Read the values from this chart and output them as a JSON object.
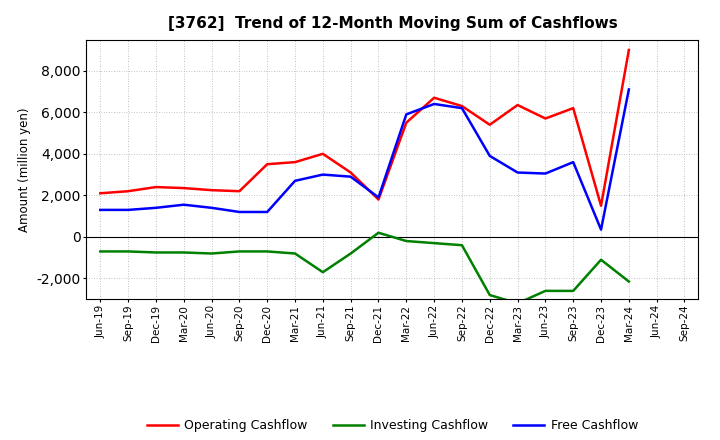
{
  "title": "[3762]  Trend of 12-Month Moving Sum of Cashflows",
  "ylabel": "Amount (million yen)",
  "x_labels": [
    "Jun-19",
    "Sep-19",
    "Dec-19",
    "Mar-20",
    "Jun-20",
    "Sep-20",
    "Dec-20",
    "Mar-21",
    "Jun-21",
    "Sep-21",
    "Dec-21",
    "Mar-22",
    "Jun-22",
    "Sep-22",
    "Dec-22",
    "Mar-23",
    "Jun-23",
    "Sep-23",
    "Dec-23",
    "Mar-24",
    "Jun-24",
    "Sep-24"
  ],
  "operating": [
    2100,
    2200,
    2400,
    2350,
    2250,
    2200,
    3500,
    3600,
    4000,
    3100,
    1800,
    5500,
    6700,
    6300,
    5400,
    6350,
    5700,
    6200,
    1500,
    9000,
    null,
    null
  ],
  "investing": [
    -700,
    -700,
    -750,
    -750,
    -800,
    -700,
    -700,
    -800,
    -1700,
    -800,
    200,
    -200,
    -300,
    -400,
    -2800,
    -3200,
    -2600,
    -2600,
    -1100,
    -2150,
    null,
    null
  ],
  "free": [
    1300,
    1300,
    1400,
    1550,
    1400,
    1200,
    1200,
    2700,
    3000,
    2900,
    1900,
    5900,
    6400,
    6200,
    3900,
    3100,
    3050,
    3600,
    350,
    7100,
    null,
    null
  ],
  "operating_color": "#ff0000",
  "investing_color": "#008000",
  "free_color": "#0000ff",
  "ylim": [
    -3000,
    9500
  ],
  "yticks": [
    -2000,
    0,
    2000,
    4000,
    6000,
    8000
  ],
  "background_color": "#ffffff",
  "grid_color": "#b0b0b0",
  "line_width": 1.8
}
